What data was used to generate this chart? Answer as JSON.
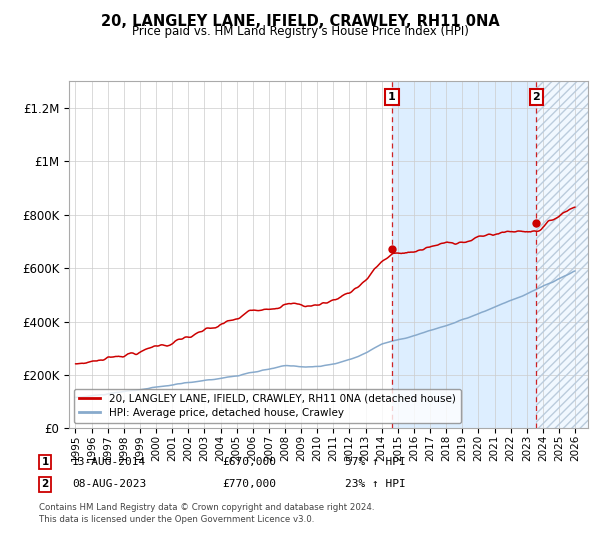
{
  "title": "20, LANGLEY LANE, IFIELD, CRAWLEY, RH11 0NA",
  "subtitle": "Price paid vs. HM Land Registry's House Price Index (HPI)",
  "ylim": [
    0,
    1300000
  ],
  "yticks": [
    0,
    200000,
    400000,
    600000,
    800000,
    1000000,
    1200000
  ],
  "ytick_labels": [
    "£0",
    "£200K",
    "£400K",
    "£600K",
    "£800K",
    "£1M",
    "£1.2M"
  ],
  "xlim_start": 1994.6,
  "xlim_end": 2026.8,
  "sale1_year": 2014.617,
  "sale1_price": 670000,
  "sale1_label": "1",
  "sale1_date": "13-AUG-2014",
  "sale1_price_str": "£670,000",
  "sale1_pct": "57% ↑ HPI",
  "sale2_year": 2023.604,
  "sale2_price": 770000,
  "sale2_label": "2",
  "sale2_date": "08-AUG-2023",
  "sale2_price_str": "£770,000",
  "sale2_pct": "23% ↑ HPI",
  "legend_label1": "20, LANGLEY LANE, IFIELD, CRAWLEY, RH11 0NA (detached house)",
  "legend_label2": "HPI: Average price, detached house, Crawley",
  "line1_color": "#cc0000",
  "line2_color": "#88aacc",
  "footnote1": "Contains HM Land Registry data © Crown copyright and database right 2024.",
  "footnote2": "This data is licensed under the Open Government Licence v3.0.",
  "background_color": "#ffffff",
  "grid_color": "#cccccc",
  "shade_color": "#ddeeff"
}
